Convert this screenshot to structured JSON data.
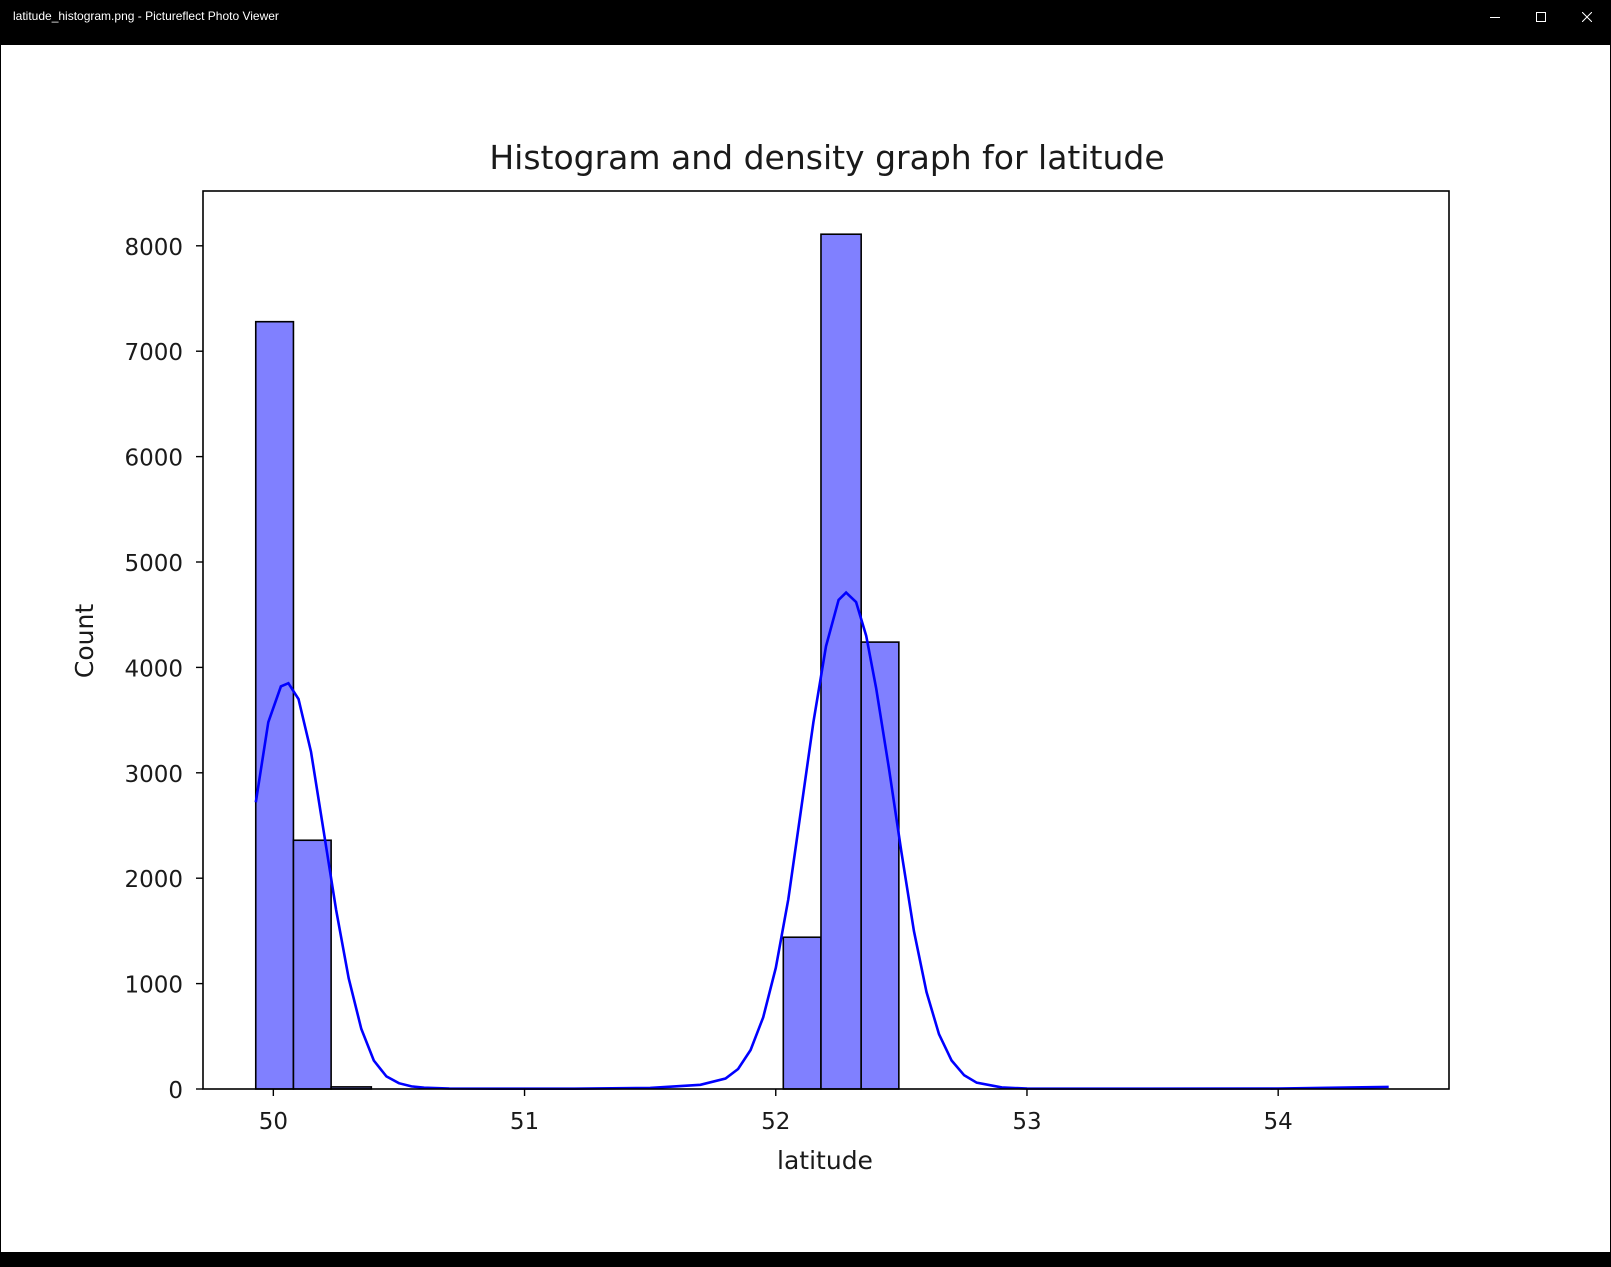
{
  "window": {
    "title": "latitude_histogram.png - Pictureflect Photo Viewer",
    "controls": {
      "minimize": "minimize-icon",
      "maximize": "maximize-icon",
      "close": "close-icon"
    }
  },
  "chart_data": {
    "type": "bar",
    "title": "Histogram and density graph for latitude",
    "xlabel": "latitude",
    "ylabel": "Count",
    "xlim": [
      49.72,
      54.68
    ],
    "ylim": [
      0,
      8520
    ],
    "xticks": [
      50,
      51,
      52,
      53,
      54
    ],
    "yticks": [
      0,
      1000,
      2000,
      3000,
      4000,
      5000,
      6000,
      7000,
      8000
    ],
    "grid": false,
    "legend": "none",
    "bins": [
      {
        "x0": 49.93,
        "x1": 50.08,
        "count": 7280
      },
      {
        "x0": 50.08,
        "x1": 50.23,
        "count": 2360
      },
      {
        "x0": 50.23,
        "x1": 50.39,
        "count": 20
      },
      {
        "x0": 52.03,
        "x1": 52.18,
        "count": 1440
      },
      {
        "x0": 52.18,
        "x1": 52.34,
        "count": 8110
      },
      {
        "x0": 52.34,
        "x1": 52.49,
        "count": 4240
      }
    ],
    "kde": {
      "x": [
        49.93,
        49.98,
        50.03,
        50.06,
        50.1,
        50.15,
        50.2,
        50.25,
        50.3,
        50.35,
        50.4,
        50.45,
        50.5,
        50.55,
        50.6,
        50.7,
        50.9,
        51.2,
        51.5,
        51.7,
        51.8,
        51.85,
        51.9,
        51.95,
        52.0,
        52.05,
        52.1,
        52.15,
        52.2,
        52.25,
        52.28,
        52.32,
        52.36,
        52.4,
        52.45,
        52.5,
        52.55,
        52.6,
        52.65,
        52.7,
        52.75,
        52.8,
        52.9,
        53.0,
        53.5,
        54.0,
        54.3,
        54.44
      ],
      "y": [
        2720,
        3480,
        3820,
        3850,
        3700,
        3200,
        2450,
        1700,
        1050,
        570,
        270,
        120,
        55,
        25,
        12,
        5,
        3,
        3,
        10,
        40,
        100,
        190,
        370,
        680,
        1150,
        1800,
        2640,
        3480,
        4200,
        4640,
        4710,
        4620,
        4300,
        3800,
        3050,
        2250,
        1500,
        920,
        520,
        270,
        130,
        60,
        15,
        4,
        3,
        5,
        15,
        20
      ]
    },
    "colors": {
      "bar_fill": "#8080ff",
      "bar_edge": "#000000",
      "kde_line": "#0000ff"
    }
  }
}
